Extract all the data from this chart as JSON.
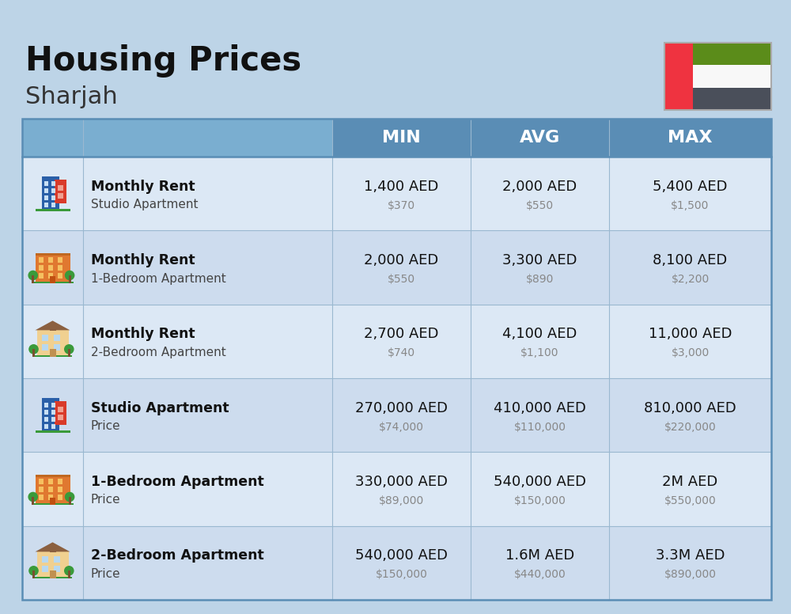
{
  "title": "Housing Prices",
  "subtitle": "Sharjah",
  "bg_color": "#bdd4e7",
  "header_bg": "#5a8db5",
  "header_text_color": "#ffffff",
  "row_colors": [
    "#dce8f5",
    "#cddcee"
  ],
  "columns": [
    "MIN",
    "AVG",
    "MAX"
  ],
  "rows": [
    {
      "bold_label": "Monthly Rent",
      "sub_label": "Studio Apartment",
      "icon_type": "blue_red",
      "min_aed": "1,400 AED",
      "min_usd": "$370",
      "avg_aed": "2,000 AED",
      "avg_usd": "$550",
      "max_aed": "5,400 AED",
      "max_usd": "$1,500"
    },
    {
      "bold_label": "Monthly Rent",
      "sub_label": "1-Bedroom Apartment",
      "icon_type": "orange",
      "min_aed": "2,000 AED",
      "min_usd": "$550",
      "avg_aed": "3,300 AED",
      "avg_usd": "$890",
      "max_aed": "8,100 AED",
      "max_usd": "$2,200"
    },
    {
      "bold_label": "Monthly Rent",
      "sub_label": "2-Bedroom Apartment",
      "icon_type": "beige",
      "min_aed": "2,700 AED",
      "min_usd": "$740",
      "avg_aed": "4,100 AED",
      "avg_usd": "$1,100",
      "max_aed": "11,000 AED",
      "max_usd": "$3,000"
    },
    {
      "bold_label": "Studio Apartment",
      "sub_label": "Price",
      "icon_type": "blue_red",
      "min_aed": "270,000 AED",
      "min_usd": "$74,000",
      "avg_aed": "410,000 AED",
      "avg_usd": "$110,000",
      "max_aed": "810,000 AED",
      "max_usd": "$220,000"
    },
    {
      "bold_label": "1-Bedroom Apartment",
      "sub_label": "Price",
      "icon_type": "orange",
      "min_aed": "330,000 AED",
      "min_usd": "$89,000",
      "avg_aed": "540,000 AED",
      "avg_usd": "$150,000",
      "max_aed": "2M AED",
      "max_usd": "$550,000"
    },
    {
      "bold_label": "2-Bedroom Apartment",
      "sub_label": "Price",
      "icon_type": "beige",
      "min_aed": "540,000 AED",
      "min_usd": "$150,000",
      "avg_aed": "1.6M AED",
      "avg_usd": "$440,000",
      "max_aed": "3.3M AED",
      "max_usd": "$890,000"
    }
  ]
}
